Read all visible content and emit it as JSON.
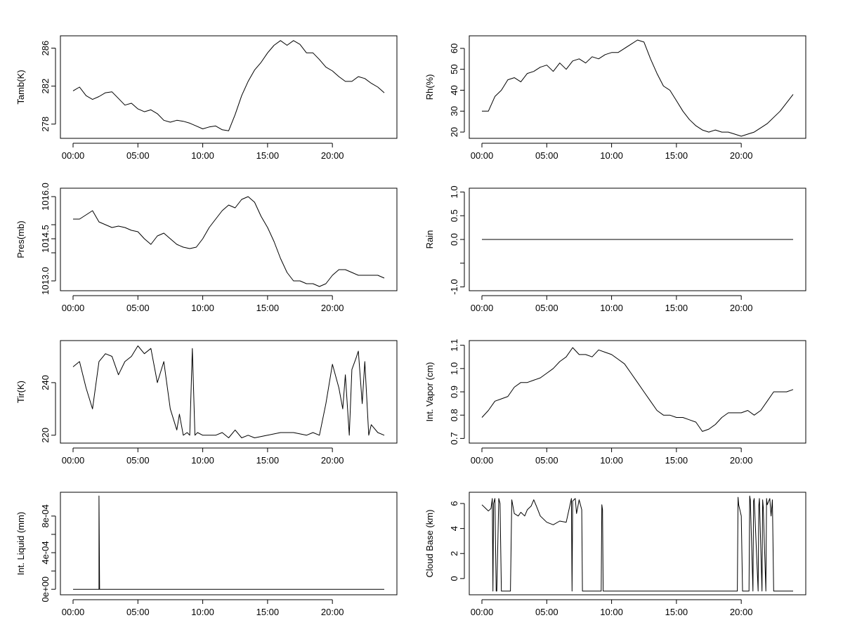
{
  "chart_data": [
    {
      "type": "line",
      "ylabel": "Tamb(K)",
      "xticks": [
        "00:00",
        "05:00",
        "10:00",
        "15:00",
        "20:00"
      ],
      "yticks": [
        "278",
        "282",
        "286"
      ],
      "ylim": [
        276.5,
        287.3
      ],
      "series": [
        {
          "x": [
            0,
            0.5,
            1,
            1.5,
            2,
            2.5,
            3,
            3.5,
            4,
            4.5,
            5,
            5.5,
            6,
            6.5,
            7,
            7.5,
            8,
            8.5,
            9,
            9.5,
            10,
            10.5,
            11,
            11.5,
            12,
            12.5,
            13,
            13.5,
            14,
            14.5,
            15,
            15.5,
            16,
            16.5,
            17,
            17.5,
            18,
            18.5,
            19,
            19.5,
            20,
            20.5,
            21,
            21.5,
            22,
            22.5,
            23,
            23.5,
            24
          ],
          "y": [
            281.5,
            281.9,
            281.0,
            280.6,
            280.9,
            281.3,
            281.4,
            280.7,
            280.0,
            280.2,
            279.6,
            279.3,
            279.5,
            279.1,
            278.4,
            278.2,
            278.4,
            278.3,
            278.1,
            277.8,
            277.5,
            277.7,
            277.8,
            277.4,
            277.3,
            279.0,
            281.0,
            282.5,
            283.7,
            284.5,
            285.5,
            286.3,
            286.8,
            286.3,
            286.8,
            286.4,
            285.5,
            285.5,
            284.8,
            284.0,
            283.6,
            283.0,
            282.5,
            282.5,
            283.0,
            282.8,
            282.3,
            281.9,
            281.3
          ]
        }
      ]
    },
    {
      "type": "line",
      "ylabel": "Rh(%)",
      "xticks": [
        "00:00",
        "05:00",
        "10:00",
        "15:00",
        "20:00"
      ],
      "yticks": [
        "20",
        "30",
        "40",
        "50",
        "60"
      ],
      "ylim": [
        17,
        66
      ],
      "series": [
        {
          "x": [
            0,
            0.5,
            1,
            1.5,
            2,
            2.5,
            3,
            3.5,
            4,
            4.5,
            5,
            5.5,
            6,
            6.5,
            7,
            7.5,
            8,
            8.5,
            9,
            9.5,
            10,
            10.5,
            11,
            11.5,
            12,
            12.5,
            13,
            13.5,
            14,
            14.5,
            15,
            15.5,
            16,
            16.5,
            17,
            17.5,
            18,
            18.5,
            19,
            19.5,
            20,
            20.5,
            21,
            21.5,
            22,
            22.5,
            23,
            23.5,
            24
          ],
          "y": [
            30,
            30,
            37,
            40,
            45,
            46,
            44,
            48,
            49,
            51,
            52,
            49,
            53,
            50,
            54,
            55,
            53,
            56,
            55,
            57,
            58,
            58,
            60,
            62,
            64,
            63,
            55,
            48,
            42,
            40,
            35,
            30,
            26,
            23,
            21,
            20,
            21,
            20,
            20,
            19,
            18,
            19,
            20,
            22,
            24,
            27,
            30,
            34,
            38
          ]
        }
      ]
    },
    {
      "type": "line",
      "ylabel": "Pres(mb)",
      "xticks": [
        "00:00",
        "05:00",
        "10:00",
        "15:00",
        "20:00"
      ],
      "yticks": [
        "1013.0",
        "1014.5",
        "1016.0"
      ],
      "yticks_minor": [
        "1014",
        "1015"
      ],
      "ylim": [
        1012.65,
        1016.3
      ],
      "series": [
        {
          "x": [
            0,
            0.5,
            1,
            1.5,
            2,
            2.5,
            3,
            3.5,
            4,
            4.5,
            5,
            5.5,
            6,
            6.5,
            7,
            7.5,
            8,
            8.5,
            9,
            9.5,
            10,
            10.5,
            11,
            11.5,
            12,
            12.5,
            13,
            13.5,
            14,
            14.5,
            15,
            15.5,
            16,
            16.5,
            17,
            17.5,
            18,
            18.5,
            19,
            19.5,
            20,
            20.5,
            21,
            21.5,
            22,
            22.5,
            23,
            23.5,
            24
          ],
          "y": [
            1015.2,
            1015.2,
            1015.35,
            1015.5,
            1015.1,
            1015.0,
            1014.9,
            1014.95,
            1014.9,
            1014.8,
            1014.75,
            1014.5,
            1014.3,
            1014.6,
            1014.7,
            1014.5,
            1014.3,
            1014.2,
            1014.15,
            1014.2,
            1014.5,
            1014.9,
            1015.2,
            1015.5,
            1015.7,
            1015.6,
            1015.9,
            1016.0,
            1015.8,
            1015.3,
            1014.9,
            1014.4,
            1013.8,
            1013.3,
            1013.0,
            1013.0,
            1012.9,
            1012.9,
            1012.8,
            1012.9,
            1013.2,
            1013.4,
            1013.4,
            1013.3,
            1013.2,
            1013.2,
            1013.2,
            1013.2,
            1013.1
          ]
        }
      ]
    },
    {
      "type": "line",
      "ylabel": "Rain",
      "xticks": [
        "00:00",
        "05:00",
        "10:00",
        "15:00",
        "20:00"
      ],
      "yticks": [
        "-1.0",
        "0.0",
        "0.5",
        "1.0"
      ],
      "yticks_minor": [
        "-0.5"
      ],
      "ylim": [
        -1.08,
        1.08
      ],
      "series": [
        {
          "x": [
            0,
            24
          ],
          "y": [
            0,
            0
          ]
        }
      ]
    },
    {
      "type": "line",
      "ylabel": "Tir(K)",
      "xticks": [
        "00:00",
        "05:00",
        "10:00",
        "15:00",
        "20:00"
      ],
      "yticks": [
        "220",
        "240"
      ],
      "ylim": [
        217,
        256
      ],
      "series": [
        {
          "x": [
            0,
            0.5,
            1,
            1.5,
            2,
            2.5,
            3,
            3.5,
            4,
            4.5,
            5,
            5.5,
            6,
            6.5,
            7,
            7.5,
            8,
            8.2,
            8.5,
            8.8,
            9,
            9.2,
            9.4,
            9.6,
            10,
            10.5,
            11,
            11.5,
            12,
            12.5,
            13,
            13.5,
            14,
            15,
            16,
            17,
            18,
            18.5,
            19,
            19.5,
            20,
            20.5,
            20.8,
            21,
            21.3,
            21.5,
            21.8,
            22,
            22.3,
            22.5,
            22.8,
            23,
            23.5,
            24
          ],
          "y": [
            246,
            248,
            238,
            230,
            248,
            251,
            250,
            243,
            248,
            250,
            254,
            251,
            253,
            240,
            248,
            230,
            222,
            228,
            220,
            221,
            220,
            253,
            220,
            221,
            220,
            220,
            220,
            221,
            219,
            222,
            219,
            220,
            219,
            220,
            221,
            221,
            220,
            221,
            220,
            232,
            247,
            238,
            230,
            243,
            220,
            245,
            249,
            252,
            232,
            248,
            220,
            224,
            221,
            220
          ]
        }
      ]
    },
    {
      "type": "line",
      "ylabel": "Int. Vapor (cm)",
      "xticks": [
        "00:00",
        "05:00",
        "10:00",
        "15:00",
        "20:00"
      ],
      "yticks": [
        "0.7",
        "0.8",
        "0.9",
        "1.0",
        "1.1"
      ],
      "ylim": [
        0.68,
        1.12
      ],
      "series": [
        {
          "x": [
            0,
            0.5,
            1,
            1.5,
            2,
            2.5,
            3,
            3.5,
            4,
            4.5,
            5,
            5.5,
            6,
            6.5,
            7,
            7.5,
            8,
            8.5,
            9,
            9.5,
            10,
            10.5,
            11,
            11.5,
            12,
            12.5,
            13,
            13.5,
            14,
            14.5,
            15,
            15.5,
            16,
            16.5,
            17,
            17.5,
            18,
            18.5,
            19,
            19.5,
            20,
            20.5,
            21,
            21.5,
            22,
            22.5,
            23,
            23.5,
            24
          ],
          "y": [
            0.79,
            0.82,
            0.86,
            0.87,
            0.88,
            0.92,
            0.94,
            0.94,
            0.95,
            0.96,
            0.98,
            1.0,
            1.03,
            1.05,
            1.09,
            1.06,
            1.06,
            1.05,
            1.08,
            1.07,
            1.06,
            1.04,
            1.02,
            0.98,
            0.94,
            0.9,
            0.86,
            0.82,
            0.8,
            0.8,
            0.79,
            0.79,
            0.78,
            0.77,
            0.73,
            0.74,
            0.76,
            0.79,
            0.81,
            0.81,
            0.81,
            0.82,
            0.8,
            0.82,
            0.86,
            0.9,
            0.9,
            0.9,
            0.91
          ]
        }
      ]
    },
    {
      "type": "line",
      "ylabel": "Int. Liquid (mm)",
      "xticks": [
        "00:00",
        "05:00",
        "10:00",
        "15:00",
        "20:00"
      ],
      "yticks": [
        "0e+00",
        "4e-04",
        "8e-04"
      ],
      "yticks_minor": [
        "2e-04",
        "6e-04"
      ],
      "ylim": [
        -6e-05,
        0.00106
      ],
      "series": [
        {
          "x": [
            0,
            1.95,
            2.0,
            2.0,
            2.05,
            24
          ],
          "y": [
            0,
            0,
            0,
            0.00102,
            0,
            0
          ]
        }
      ]
    },
    {
      "type": "line",
      "ylabel": "Cloud Base (km)",
      "xticks": [
        "00:00",
        "05:00",
        "10:00",
        "15:00",
        "20:00"
      ],
      "yticks": [
        "0",
        "2",
        "4",
        "6"
      ],
      "ylim": [
        -1.3,
        6.9
      ],
      "series": [
        {
          "x": [
            0,
            0.3,
            0.5,
            0.7,
            0.8,
            0.85,
            0.9,
            1.0,
            1.1,
            1.15,
            1.3,
            1.4,
            1.5,
            1.6,
            1.7,
            2.2,
            2.3,
            2.5,
            2.8,
            3.0,
            3.3,
            3.5,
            3.8,
            4.0,
            4.2,
            4.5,
            5.0,
            5.5,
            6.0,
            6.5,
            6.9,
            6.95,
            7.0,
            7.2,
            7.3,
            7.5,
            7.7,
            7.75,
            7.8,
            9.2,
            9.25,
            9.3,
            9.35,
            19.7,
            19.75,
            19.8,
            20.0,
            20.1,
            20.6,
            20.65,
            20.7,
            20.9,
            20.95,
            21.0,
            21.3,
            21.35,
            21.4,
            21.6,
            21.65,
            21.7,
            21.9,
            21.95,
            22.0,
            22.2,
            22.3,
            22.4,
            22.5,
            24
          ],
          "y": [
            5.9,
            5.6,
            5.4,
            5.6,
            6.4,
            -1.0,
            6.0,
            6.4,
            -1.0,
            -1.0,
            6.4,
            6.0,
            -1.0,
            -1.0,
            -1.0,
            -1.0,
            6.3,
            5.2,
            5.0,
            5.3,
            5.0,
            5.5,
            5.8,
            6.3,
            5.8,
            5.0,
            4.5,
            4.3,
            4.6,
            4.5,
            6.4,
            -1.0,
            6.2,
            6.4,
            5.2,
            6.3,
            5.5,
            -1.0,
            -1.0,
            -1.0,
            5.9,
            5.5,
            -1.0,
            -1.0,
            6.5,
            5.9,
            5.0,
            -1.0,
            -1.0,
            6.6,
            6.3,
            -1.0,
            6.2,
            6.4,
            -1.0,
            5.8,
            6.4,
            -1.0,
            6.3,
            5.7,
            -1.0,
            6.4,
            5.9,
            6.4,
            5.0,
            6.3,
            -1.0,
            -1.0
          ]
        }
      ]
    }
  ]
}
